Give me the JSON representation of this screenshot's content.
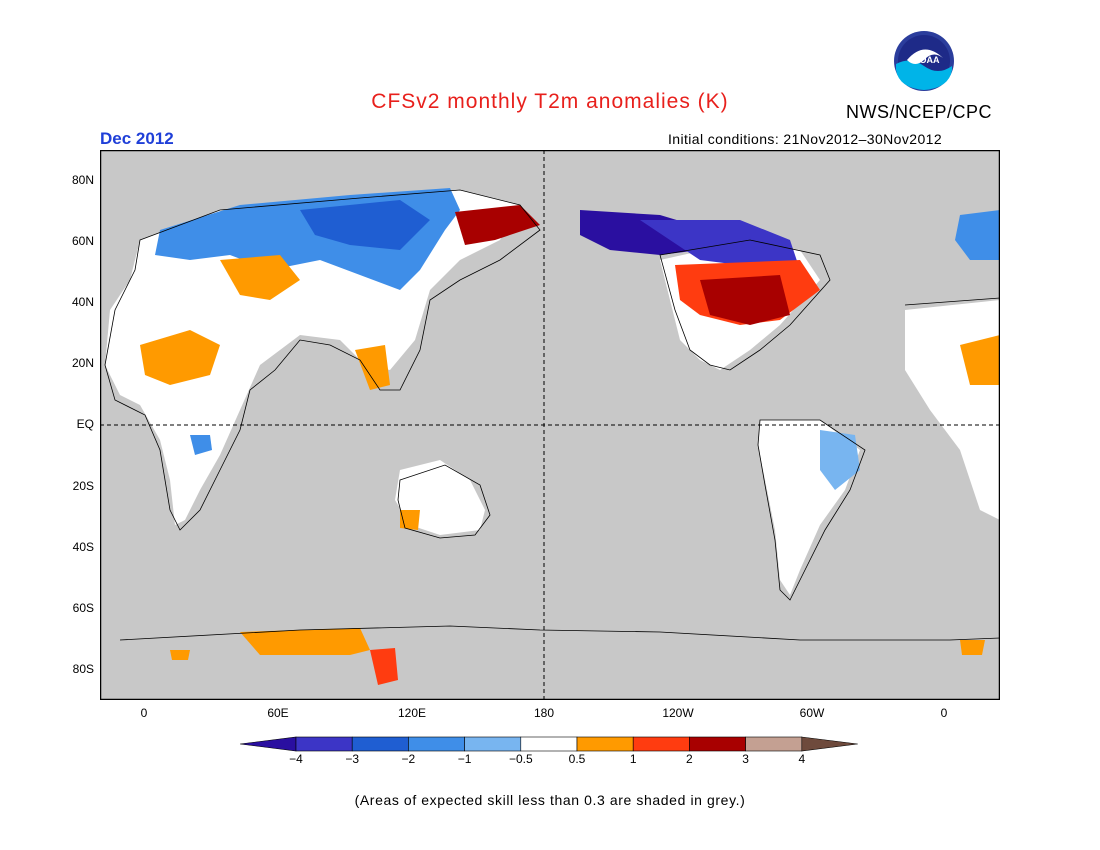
{
  "title": "CFSv2 monthly T2m anomalies (K)",
  "agency": "NWS/NCEP/CPC",
  "logo_text": "NOAA",
  "valid_month": "Dec 2012",
  "initial_conditions": "Initial conditions: 21Nov2012–30Nov2012",
  "footnote": "(Areas of expected skill less than 0.3 are shaded in grey.)",
  "lat_labels": [
    "80N",
    "60N",
    "40N",
    "20N",
    "EQ",
    "20S",
    "40S",
    "60S",
    "80S"
  ],
  "lon_labels": [
    "0",
    "60E",
    "120E",
    "180",
    "120W",
    "60W",
    "0"
  ],
  "colorbar": {
    "labels": [
      "−4",
      "−3",
      "−2",
      "−1",
      "−0.5",
      "0.5",
      "1",
      "2",
      "3",
      "4"
    ],
    "colors": [
      "#2a0fa0",
      "#3c35c6",
      "#1f5ed2",
      "#3f8ee8",
      "#78b5f0",
      "#ffffff",
      "#ff9a00",
      "#ff3c10",
      "#a80000",
      "#c4a092",
      "#6e4a3c"
    ]
  },
  "colors": {
    "no_skill_grey": "#c8c8c8",
    "title_red": "#e8201c",
    "month_blue": "#1f3fd8"
  }
}
